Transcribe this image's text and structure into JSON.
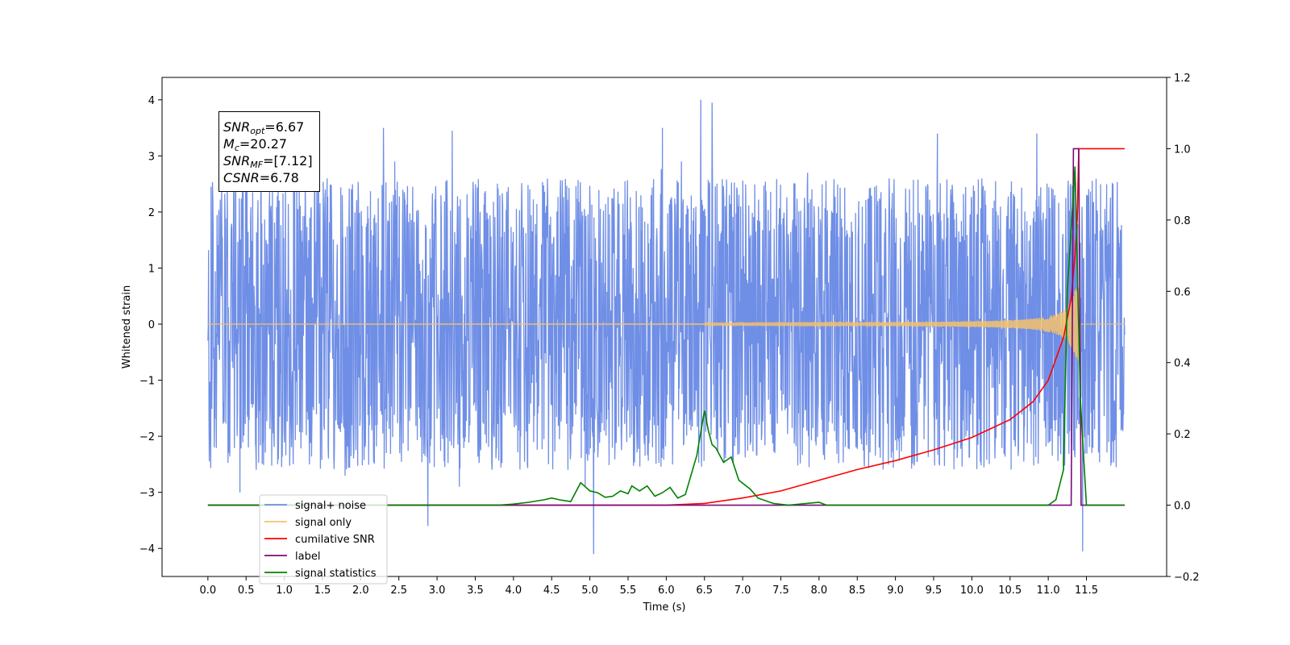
{
  "colors": {
    "signal_noise": "#6f8ee6",
    "signal_only": "#f5c26b",
    "cumulative_snr": "#ff0000",
    "label": "#7b0a7b",
    "signal_statistics": "#008000"
  },
  "stats": {
    "snr_opt_sym": "SNR",
    "snr_opt_sub": "opt",
    "snr_opt_val": "=6.67",
    "mc_sym": "M",
    "mc_sub": "c",
    "mc_val": "=20.27",
    "snr_mf_sym": "SNR",
    "snr_mf_sub": "MF",
    "snr_mf_val": "=[7.12]",
    "csnr_sym": "CSNR",
    "csnr_val": "=6.78"
  },
  "chart_data": {
    "type": "line",
    "title": "",
    "xlabel": "Time (s)",
    "ylabel": "Whitened strain",
    "xlim": [
      -0.6,
      12.55
    ],
    "ylim": [
      -4.5,
      4.4
    ],
    "y2lim": [
      -0.2,
      1.2
    ],
    "x_ticks": [
      0.0,
      0.5,
      1.0,
      1.5,
      2.0,
      2.5,
      3.0,
      3.5,
      4.0,
      4.5,
      5.0,
      5.5,
      6.0,
      6.5,
      7.0,
      7.5,
      8.0,
      8.5,
      9.0,
      9.5,
      10.0,
      10.5,
      11.0,
      11.5
    ],
    "x_tick_labels": [
      "0.0",
      "0.5",
      "1.0",
      "1.5",
      "2.0",
      "2.5",
      "3.0",
      "3.5",
      "4.0",
      "4.5",
      "5.0",
      "5.5",
      "6.0",
      "6.5",
      "7.0",
      "7.5",
      "8.0",
      "8.5",
      "9.0",
      "9.5",
      "10.0",
      "10.5",
      "11.0",
      "11.5"
    ],
    "y_ticks": [
      4,
      3,
      2,
      1,
      0,
      -1,
      -2,
      -3,
      -4
    ],
    "y_tick_labels": [
      "4",
      "3",
      "2",
      "1",
      "0",
      "−1",
      "−2",
      "−3",
      "−4"
    ],
    "y2_ticks": [
      1.2,
      1.0,
      0.8,
      0.6,
      0.4,
      0.2,
      0.0,
      -0.2
    ],
    "y2_tick_labels": [
      "1.2",
      "1.0",
      "0.8",
      "0.6",
      "0.4",
      "0.2",
      "0.0",
      "−0.2"
    ],
    "legend_placement": "lower-left",
    "legend": [
      "signal+ noise",
      "signal only",
      "cumilative SNR",
      "label",
      "signal statistics"
    ],
    "series": [
      {
        "name": "signal+ noise",
        "axis": "left",
        "description_values": "whitened noise with amplitude about ±2.5, peaks up to about 4.0 and down to about -4.1",
        "x_range": [
          0.0,
          12.0
        ],
        "typical_amplitude": 2.4,
        "peaks": [
          [
            6.45,
            4.0
          ],
          [
            6.6,
            3.95
          ],
          [
            2.88,
            -3.6
          ],
          [
            5.05,
            -4.1
          ],
          [
            11.45,
            -4.05
          ],
          [
            1.4,
            3.3
          ],
          [
            2.3,
            3.5
          ],
          [
            3.2,
            3.45
          ],
          [
            5.95,
            3.5
          ],
          [
            9.55,
            3.4
          ],
          [
            10.85,
            3.4
          ],
          [
            0.42,
            -3.0
          ]
        ]
      },
      {
        "name": "signal only",
        "axis": "left",
        "description_values": "chirp that is ~0 until about 7 s then grows to about ±0.65 at 11.4 s, then 0",
        "x_range": [
          0.0,
          12.0
        ]
      },
      {
        "name": "cumilative SNR",
        "axis": "right",
        "x": [
          0.0,
          6.0,
          6.5,
          7.0,
          7.5,
          8.0,
          8.5,
          9.0,
          9.5,
          10.0,
          10.5,
          10.8,
          11.0,
          11.2,
          11.3,
          11.35,
          11.38,
          11.4,
          12.0
        ],
        "y": [
          0.0,
          0.0,
          0.005,
          0.02,
          0.04,
          0.07,
          0.1,
          0.125,
          0.155,
          0.19,
          0.24,
          0.29,
          0.35,
          0.47,
          0.58,
          0.7,
          0.8,
          1.0,
          1.0
        ]
      },
      {
        "name": "label",
        "axis": "right",
        "x": [
          0.0,
          11.3,
          11.33,
          11.4,
          11.43,
          12.0
        ],
        "y": [
          0.0,
          0.0,
          1.0,
          1.0,
          0.0,
          0.0
        ]
      },
      {
        "name": "signal statistics",
        "axis": "right",
        "x": [
          0.0,
          3.8,
          4.0,
          4.2,
          4.4,
          4.5,
          4.6,
          4.75,
          4.88,
          5.0,
          5.1,
          5.2,
          5.3,
          5.4,
          5.5,
          5.55,
          5.65,
          5.75,
          5.85,
          5.95,
          6.05,
          6.15,
          6.25,
          6.4,
          6.5,
          6.55,
          6.6,
          6.65,
          6.75,
          6.85,
          6.95,
          7.1,
          7.2,
          7.4,
          7.6,
          8.0,
          8.1,
          8.25,
          11.0,
          11.1,
          11.2,
          11.25,
          11.35,
          11.42,
          11.5,
          12.0
        ],
        "y": [
          0.0,
          0.0,
          0.003,
          0.008,
          0.015,
          0.02,
          0.015,
          0.01,
          0.063,
          0.04,
          0.035,
          0.022,
          0.025,
          0.04,
          0.032,
          0.054,
          0.04,
          0.054,
          0.025,
          0.035,
          0.05,
          0.02,
          0.03,
          0.14,
          0.265,
          0.21,
          0.17,
          0.16,
          0.12,
          0.135,
          0.07,
          0.045,
          0.02,
          0.005,
          0.0,
          0.008,
          0.0,
          0.0,
          0.0,
          0.015,
          0.1,
          0.6,
          0.95,
          0.3,
          0.0,
          0.0
        ]
      }
    ]
  }
}
